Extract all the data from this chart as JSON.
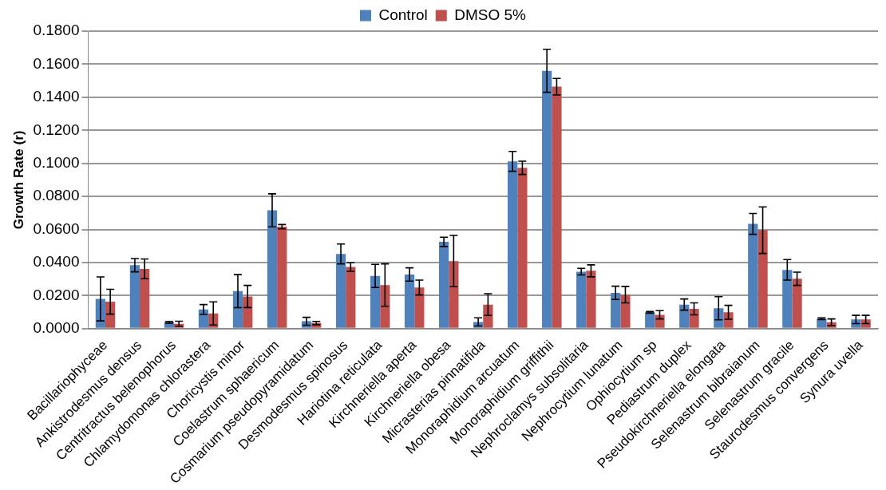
{
  "chart_data": {
    "type": "bar",
    "ylabel": "Growth Rate (r)",
    "legend": "top",
    "grid": "y",
    "categories": [
      "Bacillariophyceae",
      "Ankistrodesmus densus",
      "Centritractus belenophorus",
      "Chlamydomonas chlorastera",
      "Choricystis minor",
      "Coelastrum sphaericum",
      "Cosmarium pseudopyramidatum",
      "Desmodesmus spinosus",
      "Hariotina reticulata",
      "Kirchneriella aperta",
      "Kirchneriella obesa",
      "Micrasterias pinnatifida",
      "Monoraphidium arcuatum",
      "Monoraphidium griffithii",
      "Nephroclamys subsolitaria",
      "Nephrocytium lunatum",
      "Ophiocytium sp",
      "Pediastrum duplex",
      "Pseudokirchneriella elongata",
      "Selenastrum bibraianum",
      "Selenastrum gracile",
      "Staurodesmus convergens",
      "Synura uvella"
    ],
    "series": [
      {
        "name": "Control",
        "color": "#4f81bd",
        "values": [
          0.018,
          0.0384,
          0.0039,
          0.0116,
          0.0227,
          0.0716,
          0.0045,
          0.0452,
          0.0319,
          0.0328,
          0.0525,
          0.0041,
          0.1012,
          0.156,
          0.0345,
          0.0217,
          0.0099,
          0.0146,
          0.0124,
          0.0634,
          0.0356,
          0.006,
          0.0056
        ],
        "errors": [
          0.0133,
          0.004,
          0.0005,
          0.003,
          0.01,
          0.01,
          0.0024,
          0.006,
          0.007,
          0.004,
          0.0028,
          0.0025,
          0.006,
          0.013,
          0.002,
          0.004,
          0.0005,
          0.0034,
          0.007,
          0.0063,
          0.0062,
          0.0005,
          0.0025
        ]
      },
      {
        "name": "DMSO 5%",
        "color": "#c0504d",
        "values": [
          0.0163,
          0.0362,
          0.003,
          0.0092,
          0.0195,
          0.0617,
          0.0034,
          0.0373,
          0.0264,
          0.0249,
          0.0409,
          0.0146,
          0.0973,
          0.1464,
          0.035,
          0.0206,
          0.0084,
          0.012,
          0.0099,
          0.0596,
          0.0302,
          0.0039,
          0.0056
        ],
        "errors": [
          0.0075,
          0.006,
          0.0015,
          0.007,
          0.0067,
          0.0013,
          0.001,
          0.0026,
          0.0128,
          0.0045,
          0.0155,
          0.0066,
          0.004,
          0.005,
          0.0036,
          0.005,
          0.0025,
          0.0036,
          0.0042,
          0.0141,
          0.004,
          0.002,
          0.0025
        ]
      }
    ],
    "ylim": [
      0,
      0.18
    ],
    "yticks": [
      {
        "value": 0,
        "label": "0.0000"
      },
      {
        "value": 0.02,
        "label": "0.0200"
      },
      {
        "value": 0.04,
        "label": "0.0400"
      },
      {
        "value": 0.06,
        "label": "0.0600"
      },
      {
        "value": 0.08,
        "label": "0.0800"
      },
      {
        "value": 0.1,
        "label": "0.1000"
      },
      {
        "value": 0.12,
        "label": "0.1200"
      },
      {
        "value": 0.14,
        "label": "0.1400"
      },
      {
        "value": 0.16,
        "label": "0.1600"
      },
      {
        "value": 0.18,
        "label": "0.1800"
      }
    ]
  }
}
